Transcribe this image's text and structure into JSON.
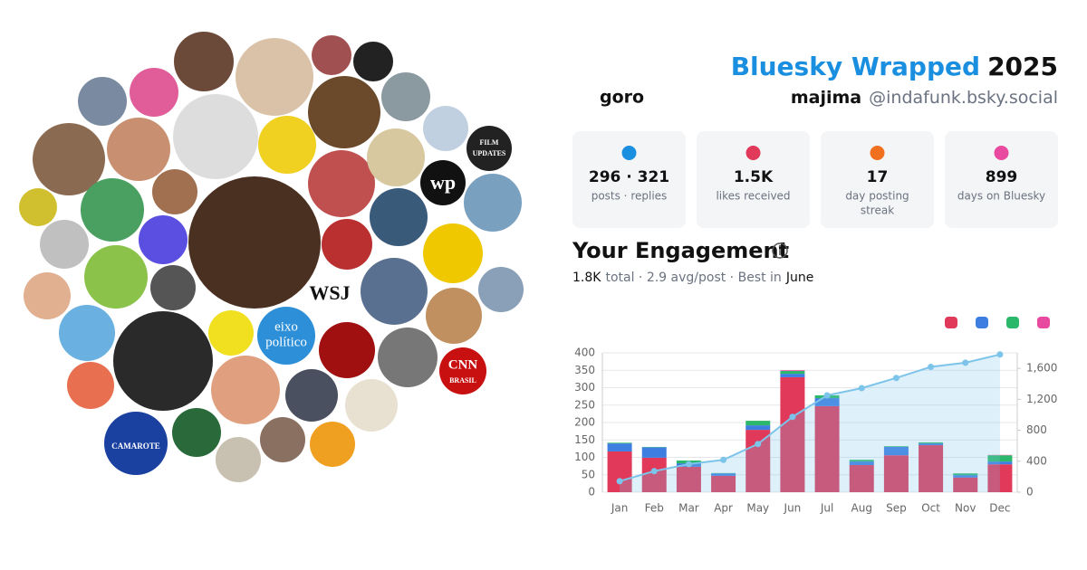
{
  "header": {
    "title": "Bluesky Wrapped",
    "year": "2025",
    "display_name_1": "goro",
    "display_name_2": "majima",
    "handle": "@indafunk.bsky.social"
  },
  "stats": [
    {
      "value": "296 · 321",
      "label": "posts · replies"
    },
    {
      "value": "1.5K",
      "label": "likes received"
    },
    {
      "value": "17",
      "label": "day posting",
      "label2": "streak"
    },
    {
      "value": "899",
      "label": "days on Bluesky"
    }
  ],
  "engagement": {
    "title": "Your Engagement",
    "total": "1.8K",
    "summary": "total · 2.9 avg/post · Best in",
    "best": "June"
  },
  "avatar_texts": {
    "wsj": "WSJ",
    "eixo": "eixo",
    "politico": "político",
    "cnn": "CNN",
    "brasil": "BRASIL",
    "camarote": "CAMAROTE",
    "film": "FILM",
    "updates": "UPDATES",
    "wp": "wp"
  },
  "chart_data": {
    "type": "bar",
    "stacked": true,
    "grid": true,
    "categories": [
      "Jan",
      "Feb",
      "Mar",
      "Apr",
      "May",
      "Jun",
      "Jul",
      "Aug",
      "Sep",
      "Oct",
      "Nov",
      "Dec"
    ],
    "series": [
      {
        "color": "#e0395a",
        "values": [
          117,
          99,
          73,
          47,
          179,
          330,
          247,
          78,
          106,
          135,
          42,
          80
        ]
      },
      {
        "color": "#3d7ee0",
        "values": [
          23,
          30,
          10,
          7,
          13,
          10,
          23,
          10,
          24,
          5,
          7,
          8
        ]
      },
      {
        "color": "#2cb86a",
        "values": [
          2,
          1,
          8,
          1,
          13,
          8,
          8,
          5,
          2,
          3,
          5,
          18
        ]
      },
      {
        "color": "#e84aa0",
        "values": [
          0,
          0,
          0,
          0,
          0,
          2,
          0,
          0,
          0,
          0,
          0,
          1
        ]
      },
      {
        "type": "line",
        "axis": "y2",
        "color": "#7cc4ea",
        "values": [
          142,
          272,
          363,
          418,
          623,
          973,
          1251,
          1344,
          1476,
          1619,
          1673,
          1779
        ]
      }
    ],
    "ylim": [
      0,
      400
    ],
    "yticks": [
      0,
      50,
      100,
      150,
      200,
      250,
      300,
      350,
      400
    ],
    "y2lim": [
      0,
      1800
    ],
    "y2ticks": [
      0,
      400,
      800,
      {
        "value": 1200,
        "label": "1,200"
      },
      {
        "value": 1600,
        "label": "1,600"
      }
    ]
  }
}
